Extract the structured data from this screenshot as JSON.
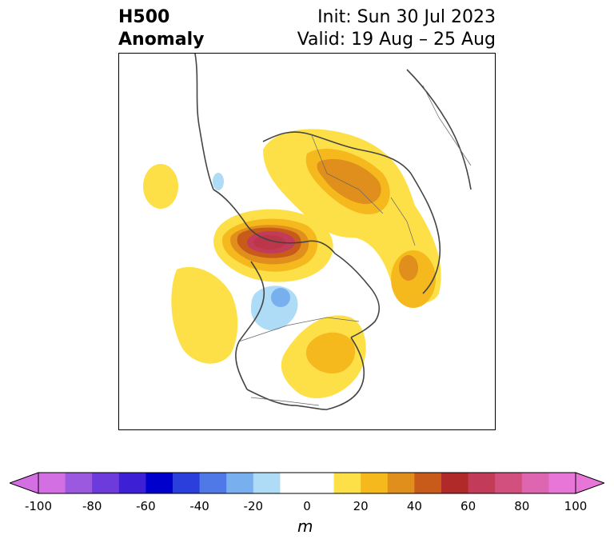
{
  "title": {
    "left_line1": "H500",
    "left_line2": "Anomaly",
    "right_line1": "Init: Sun 30 Jul 2023",
    "right_line2": "Valid: 19 Aug – 25 Aug"
  },
  "map": {
    "region": "North America / Arctic",
    "projection": "north polar stereographic",
    "anomaly_features": [
      {
        "type": "positive",
        "level_m": 60,
        "location": "northern Canada / Beaufort region"
      },
      {
        "type": "positive",
        "level_m": 40,
        "location": "northern Europe / Scandinavia"
      },
      {
        "type": "positive",
        "level_m": 30,
        "location": "eastern North America"
      },
      {
        "type": "positive",
        "level_m": 10,
        "location": "northeast Pacific"
      },
      {
        "type": "negative",
        "level_m": -30,
        "location": "western Canada"
      },
      {
        "type": "negative",
        "level_m": -20,
        "location": "northwest Pacific"
      }
    ]
  },
  "colorbar": {
    "label": "m",
    "ticks": [
      "-100",
      "-80",
      "-60",
      "-40",
      "-20",
      "0",
      "20",
      "40",
      "60",
      "80",
      "100"
    ],
    "colors": [
      "#d36ee3",
      "#9b59e0",
      "#6d3bdb",
      "#3d1fd6",
      "#0000cc",
      "#2a3fdc",
      "#4f79e6",
      "#78afef",
      "#aedcf7",
      "#ffffff",
      "#ffffff",
      "#fde047",
      "#f5b91e",
      "#e08e1c",
      "#c85a1a",
      "#b02a2a",
      "#c23c5a",
      "#d2507e",
      "#de66b1",
      "#e876d8"
    ],
    "min_color": "#d36ee3",
    "max_color": "#e876d8"
  }
}
